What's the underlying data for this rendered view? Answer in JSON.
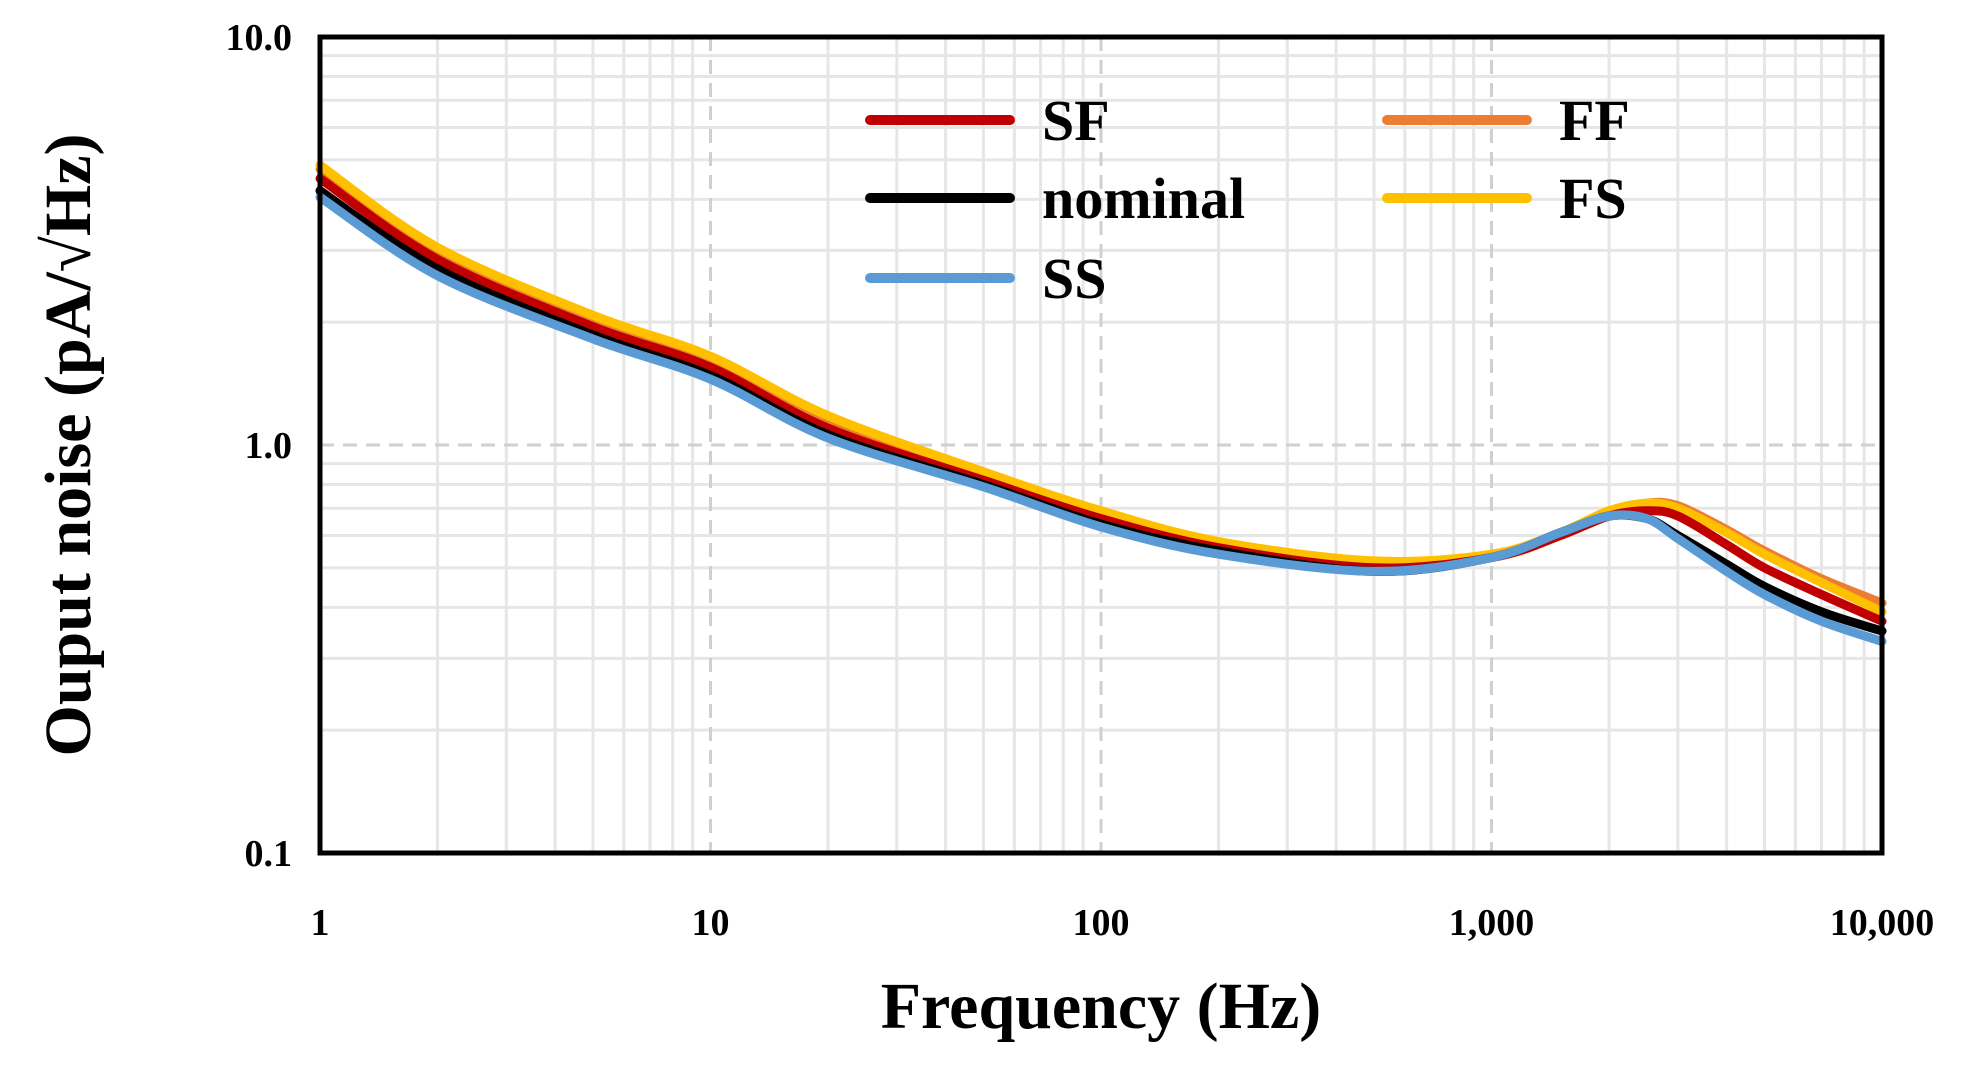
{
  "chart_data": {
    "type": "line",
    "title": "",
    "xlabel": "Frequency (Hz)",
    "ylabel": "Ouput noise (pA/√Hz)",
    "xscale": "log",
    "yscale": "log",
    "xlim": [
      1,
      10000
    ],
    "ylim": [
      0.1,
      10
    ],
    "x_ticks": [
      1,
      10,
      100,
      1000,
      10000
    ],
    "x_tick_labels": [
      "1",
      "10",
      "100",
      "1,000",
      "10,000"
    ],
    "y_ticks": [
      0.1,
      1,
      10
    ],
    "y_tick_labels": [
      "0.1",
      "1.0",
      "10.0"
    ],
    "grid": true,
    "legend_position": "top-center",
    "x": [
      1,
      2,
      5,
      10,
      20,
      50,
      100,
      200,
      500,
      1000,
      1500,
      2000,
      2500,
      3000,
      4000,
      5000,
      7000,
      10000
    ],
    "series": [
      {
        "name": "SF",
        "color": "#c00000",
        "values": [
          4.5,
          2.85,
          1.95,
          1.55,
          1.1,
          0.82,
          0.66,
          0.56,
          0.5,
          0.53,
          0.6,
          0.67,
          0.69,
          0.67,
          0.57,
          0.5,
          0.43,
          0.37
        ]
      },
      {
        "name": "FF",
        "color": "#ed7d31",
        "values": [
          4.75,
          3.0,
          2.05,
          1.62,
          1.16,
          0.85,
          0.68,
          0.57,
          0.51,
          0.53,
          0.6,
          0.68,
          0.72,
          0.71,
          0.62,
          0.55,
          0.47,
          0.41
        ]
      },
      {
        "name": "nominal",
        "color": "#000000",
        "values": [
          4.2,
          2.7,
          1.86,
          1.48,
          1.06,
          0.8,
          0.64,
          0.55,
          0.49,
          0.53,
          0.61,
          0.67,
          0.66,
          0.6,
          0.51,
          0.45,
          0.39,
          0.35
        ]
      },
      {
        "name": "FS",
        "color": "#ffc000",
        "values": [
          4.85,
          3.05,
          2.08,
          1.65,
          1.18,
          0.86,
          0.69,
          0.58,
          0.52,
          0.54,
          0.61,
          0.69,
          0.72,
          0.7,
          0.61,
          0.54,
          0.46,
          0.39
        ]
      },
      {
        "name": "SS",
        "color": "#5b9bd5",
        "values": [
          4.05,
          2.6,
          1.82,
          1.45,
          1.04,
          0.79,
          0.63,
          0.54,
          0.49,
          0.53,
          0.61,
          0.67,
          0.66,
          0.59,
          0.49,
          0.43,
          0.37,
          0.33
        ]
      }
    ],
    "legend_order": [
      "SF",
      "FF",
      "nominal",
      "FS",
      "SS"
    ]
  }
}
